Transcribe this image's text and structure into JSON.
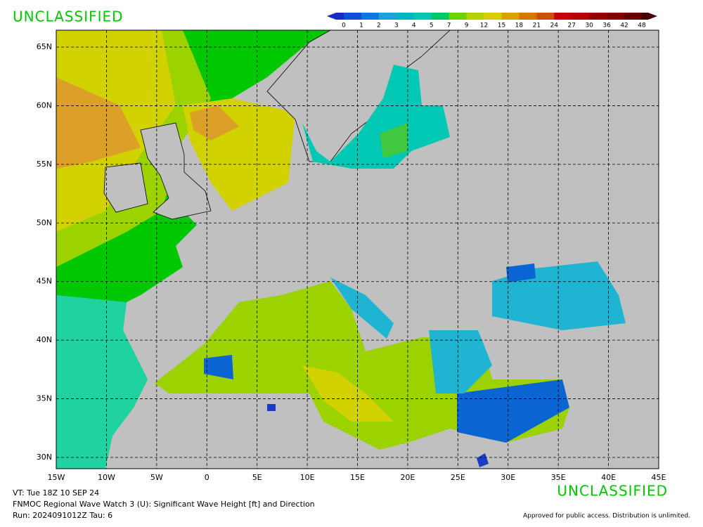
{
  "header": {
    "classification": "UNCLASSIFIED"
  },
  "colorbar": {
    "labels": [
      0,
      1,
      2,
      3,
      4,
      5,
      7,
      9,
      12,
      15,
      18,
      21,
      24,
      27,
      30,
      36,
      42,
      48
    ],
    "colors": [
      "#1a2cc0",
      "#0a50d2",
      "#0a78dc",
      "#1ea0dc",
      "#00b4c8",
      "#00c8b4",
      "#00c864",
      "#6ed200",
      "#b4d200",
      "#dccc00",
      "#dca000",
      "#d27800",
      "#c85000",
      "#c80000",
      "#b40000",
      "#960000",
      "#800000",
      "#640000",
      "#4a0000"
    ]
  },
  "map": {
    "lon_ticks": [
      {
        "value": -15,
        "label": "15W"
      },
      {
        "value": -10,
        "label": "10W"
      },
      {
        "value": -5,
        "label": "5W"
      },
      0,
      {
        "value": 5,
        "label": "5E"
      },
      {
        "value": 10,
        "label": "10E"
      },
      {
        "value": 15,
        "label": "15E"
      },
      {
        "value": 20,
        "label": "20E"
      },
      {
        "value": 25,
        "label": "25E"
      },
      {
        "value": 30,
        "label": "30E"
      },
      {
        "value": 35,
        "label": "35E"
      },
      {
        "value": 40,
        "label": "40E"
      },
      {
        "value": 45,
        "label": "45E"
      }
    ],
    "lat_ticks": [
      {
        "value": 30,
        "label": "30N"
      },
      {
        "value": 35,
        "label": "35N"
      },
      {
        "value": 40,
        "label": "40N"
      },
      {
        "value": 45,
        "label": "45N"
      },
      {
        "value": 50,
        "label": "50N"
      },
      {
        "value": 55,
        "label": "55N"
      },
      {
        "value": 60,
        "label": "60N"
      },
      {
        "value": 65,
        "label": "65N"
      }
    ]
  },
  "footer": {
    "classification": "UNCLASSIFIED",
    "valid_time": "VT: Tue 18Z 10 SEP 24",
    "product": "FNMOC Regional Wave Watch 3 (U): Significant Wave Height [ft] and Direction",
    "run": "Run: 2024091012Z Tau: 6",
    "disclaimer": "Approved for public access. Distribution is unlimited."
  }
}
